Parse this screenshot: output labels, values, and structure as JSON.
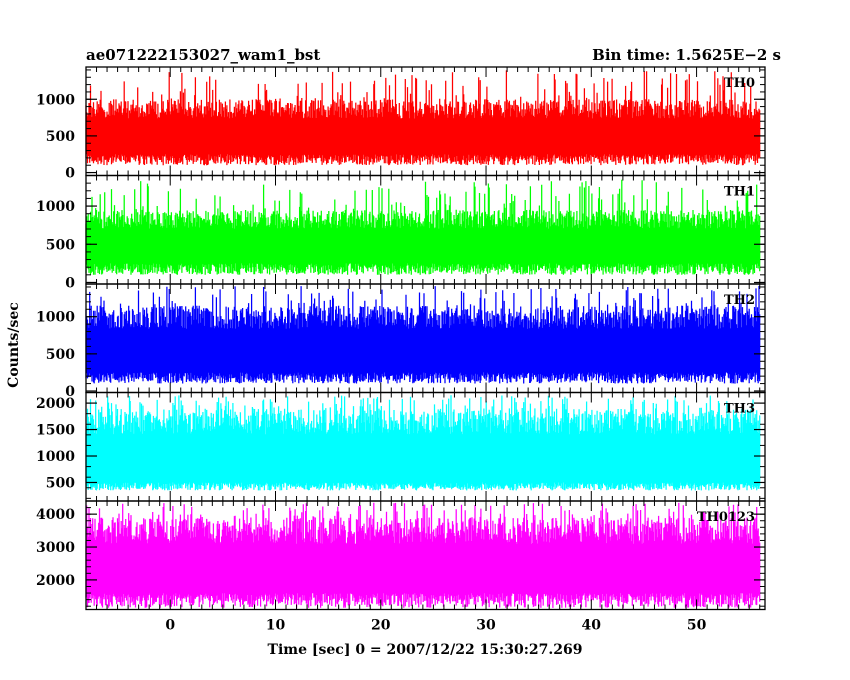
{
  "chart_data": {
    "type": "line",
    "title_left": "ae071222153027_wam1_bst",
    "title_right": "Bin time: 1.5625E−2 s",
    "xlabel": "Time [sec] 0 = 2007/12/22 15:30:27.269",
    "ylabel": "Counts/sec",
    "xlim": [
      -8,
      56.5
    ],
    "x_ticks": [
      0,
      10,
      20,
      30,
      40,
      50
    ],
    "x_tick_labels": [
      "0",
      "10",
      "20",
      "30",
      "40",
      "50"
    ],
    "data_x_range": [
      -8,
      56
    ],
    "bin_time_s": 0.015625,
    "grid": false,
    "panels": [
      {
        "name": "TH0",
        "color": "#ff0000",
        "ylim": [
          -40,
          1440
        ],
        "y_ticks": [
          0,
          500,
          1000
        ],
        "y_tick_labels": [
          "0",
          "500",
          "1000"
        ],
        "series_min": 100,
        "series_base": [
          250,
          1000
        ],
        "series_spike_max": 1400
      },
      {
        "name": "TH1",
        "color": "#00ff00",
        "ylim": [
          -20,
          1400
        ],
        "y_ticks": [
          0,
          500,
          1000
        ],
        "y_tick_labels": [
          "0",
          "500",
          "1000"
        ],
        "series_min": 100,
        "series_base": [
          250,
          950
        ],
        "series_spike_max": 1350
      },
      {
        "name": "TH2",
        "color": "#0000ff",
        "ylim": [
          -20,
          1440
        ],
        "y_ticks": [
          0,
          500,
          1000
        ],
        "y_tick_labels": [
          "0",
          "500",
          "1000"
        ],
        "series_min": 100,
        "series_base": [
          250,
          1150
        ],
        "series_spike_max": 1420
      },
      {
        "name": "TH3",
        "color": "#00ffff",
        "ylim": [
          150,
          2200
        ],
        "y_ticks": [
          500,
          1000,
          1500,
          2000
        ],
        "y_tick_labels": [
          "500",
          "1000",
          "1500",
          "2000"
        ],
        "series_min": 350,
        "series_base": [
          500,
          1900
        ],
        "series_spike_max": 2150
      },
      {
        "name": "TH0123",
        "color": "#ff00ff",
        "ylim": [
          1100,
          4400
        ],
        "y_ticks": [
          2000,
          3000,
          4000
        ],
        "y_tick_labels": [
          "2000",
          "3000",
          "4000"
        ],
        "series_min": 1150,
        "series_base": [
          1600,
          3900
        ],
        "series_spike_max": 4350
      }
    ]
  }
}
